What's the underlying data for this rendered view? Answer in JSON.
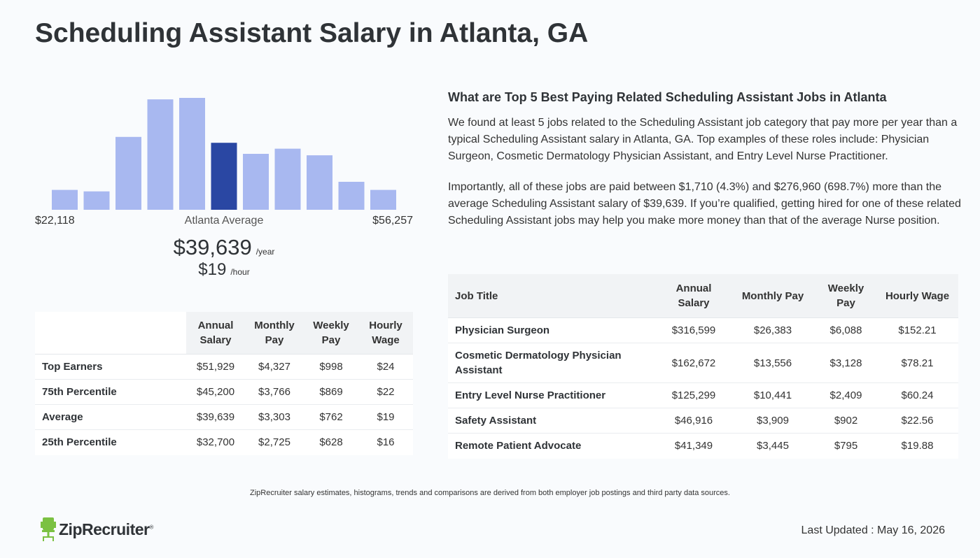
{
  "page": {
    "title": "Scheduling Assistant Salary in Atlanta, GA"
  },
  "histogram": {
    "bin_heights": [
      27,
      25,
      99,
      150,
      152,
      91,
      76,
      83,
      74,
      38,
      27
    ],
    "highlight_index": 5,
    "bar_color": "#a8b8f0",
    "highlight_color": "#2a47a3",
    "min_label": "$22,118",
    "center_label": "Atlanta Average",
    "max_label": "$56,257"
  },
  "average": {
    "yearly": "$39,639",
    "yearly_unit": "/year",
    "hourly": "$19",
    "hourly_unit": "/hour"
  },
  "percentile_table": {
    "headers": [
      "",
      "Annual Salary",
      "Monthly Pay",
      "Weekly Pay",
      "Hourly Wage"
    ],
    "rows": [
      [
        "Top Earners",
        "$51,929",
        "$4,327",
        "$998",
        "$24"
      ],
      [
        "75th Percentile",
        "$45,200",
        "$3,766",
        "$869",
        "$22"
      ],
      [
        "Average",
        "$39,639",
        "$3,303",
        "$762",
        "$19"
      ],
      [
        "25th Percentile",
        "$32,700",
        "$2,725",
        "$628",
        "$16"
      ]
    ]
  },
  "related": {
    "heading": "What are Top 5 Best Paying Related Scheduling Assistant Jobs in Atlanta",
    "paragraph1": "We found at least 5 jobs related to the Scheduling Assistant job category that pay more per year than a typical Scheduling Assistant salary in Atlanta, GA. Top examples of these roles include: Physician Surgeon, Cosmetic Dermatology Physician Assistant, and Entry Level Nurse Practitioner.",
    "paragraph2": "Importantly, all of these jobs are paid between $1,710 (4.3%) and $276,960 (698.7%) more than the average Scheduling Assistant salary of $39,639. If you’re qualified, getting hired for one of these related Scheduling Assistant jobs may help you make more money than that of the average Nurse position."
  },
  "jobs_table": {
    "headers": [
      "Job Title",
      "Annual Salary",
      "Monthly Pay",
      "Weekly Pay",
      "Hourly Wage"
    ],
    "rows": [
      [
        "Physician Surgeon",
        "$316,599",
        "$26,383",
        "$6,088",
        "$152.21"
      ],
      [
        "Cosmetic Dermatology Physician Assistant",
        "$162,672",
        "$13,556",
        "$3,128",
        "$78.21"
      ],
      [
        "Entry Level Nurse Practitioner",
        "$125,299",
        "$10,441",
        "$2,409",
        "$60.24"
      ],
      [
        "Safety Assistant",
        "$46,916",
        "$3,909",
        "$902",
        "$22.56"
      ],
      [
        "Remote Patient Advocate",
        "$41,349",
        "$3,445",
        "$795",
        "$19.88"
      ]
    ]
  },
  "footer": {
    "disclaimer": "ZipRecruiter salary estimates, histograms, trends and comparisons are derived from both employer job postings and third party data sources.",
    "logo_text": "ZipRecruiter",
    "logo_mark": "®",
    "last_updated": "Last Updated : May 16, 2026"
  },
  "colors": {
    "logo_green": "#7bc142",
    "title": "#2f3337"
  },
  "icons": {
    "logo": "chair-icon"
  }
}
